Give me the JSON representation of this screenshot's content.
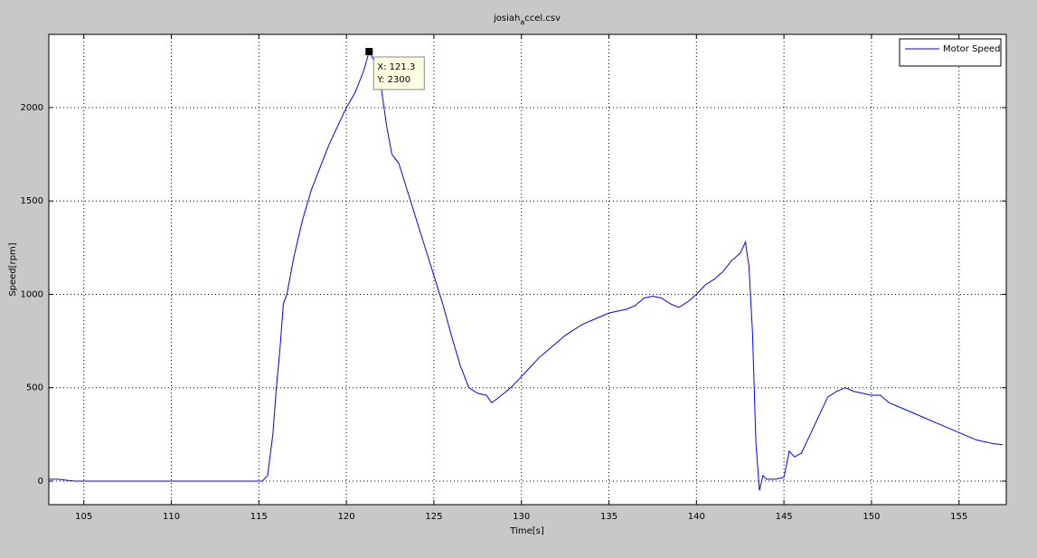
{
  "chart_data": {
    "type": "line",
    "title": [
      "josiah",
      "a",
      "ccel.csv"
    ],
    "xlabel": "Time[s]",
    "ylabel": "Speed[rpm]",
    "xlim": [
      103,
      157.7
    ],
    "ylim": [
      -126,
      2392
    ],
    "xticks": [
      105,
      110,
      115,
      120,
      125,
      130,
      135,
      140,
      145,
      150,
      155
    ],
    "yticks": [
      0,
      500,
      1000,
      1500,
      2000
    ],
    "grid": true,
    "legend": "northeast",
    "series": [
      {
        "name": "Motor Speed",
        "color": "#0000ff",
        "x": [
          103,
          103.5,
          104,
          104.5,
          106,
          108,
          110,
          112,
          114,
          115,
          115.2,
          115.5,
          115.8,
          116,
          116.2,
          116.4,
          116.6,
          116.8,
          117,
          117.5,
          118,
          118.5,
          119,
          119.5,
          120,
          120.5,
          121,
          121.3,
          121.6,
          122,
          122.3,
          122.6,
          123,
          123.5,
          124,
          124.5,
          125,
          125.5,
          126,
          126.5,
          127,
          127.5,
          128,
          128.3,
          128.6,
          129,
          129.5,
          130,
          130.5,
          131,
          131.5,
          132,
          132.5,
          133,
          133.5,
          134,
          134.5,
          135,
          135.5,
          136,
          136.5,
          137,
          137.5,
          138,
          138.5,
          139,
          139.5,
          140,
          140.5,
          141,
          141.5,
          142,
          142.5,
          142.8,
          143,
          143.2,
          143.4,
          143.6,
          143.8,
          144,
          144.5,
          145,
          145.3,
          145.6,
          146,
          146.5,
          147,
          147.5,
          148,
          148.5,
          149,
          149.5,
          150,
          150.5,
          151,
          151.5,
          152,
          152.5,
          153,
          153.5,
          154,
          154.5,
          155,
          155.5,
          156,
          156.5,
          157,
          157.5
        ],
        "values": [
          10,
          10,
          5,
          0,
          0,
          0,
          0,
          0,
          0,
          0,
          0,
          30,
          250,
          500,
          700,
          950,
          1000,
          1100,
          1200,
          1400,
          1560,
          1680,
          1800,
          1900,
          2000,
          2080,
          2200,
          2300,
          2250,
          2100,
          1900,
          1750,
          1700,
          1550,
          1400,
          1250,
          1100,
          950,
          780,
          620,
          500,
          470,
          460,
          420,
          440,
          470,
          510,
          560,
          610,
          660,
          700,
          740,
          780,
          810,
          840,
          860,
          880,
          900,
          910,
          920,
          940,
          980,
          990,
          980,
          950,
          930,
          960,
          1000,
          1050,
          1080,
          1120,
          1180,
          1220,
          1280,
          1150,
          800,
          200,
          -50,
          30,
          10,
          10,
          20,
          160,
          130,
          150,
          250,
          350,
          450,
          480,
          500,
          480,
          470,
          460,
          460,
          420,
          400,
          380,
          360,
          340,
          320,
          300,
          280,
          260,
          240,
          220,
          210,
          200,
          195
        ]
      }
    ],
    "annotation": {
      "x": 121.3,
      "y": 2300,
      "text": [
        "X: 121.3",
        "Y: 2300"
      ]
    }
  }
}
